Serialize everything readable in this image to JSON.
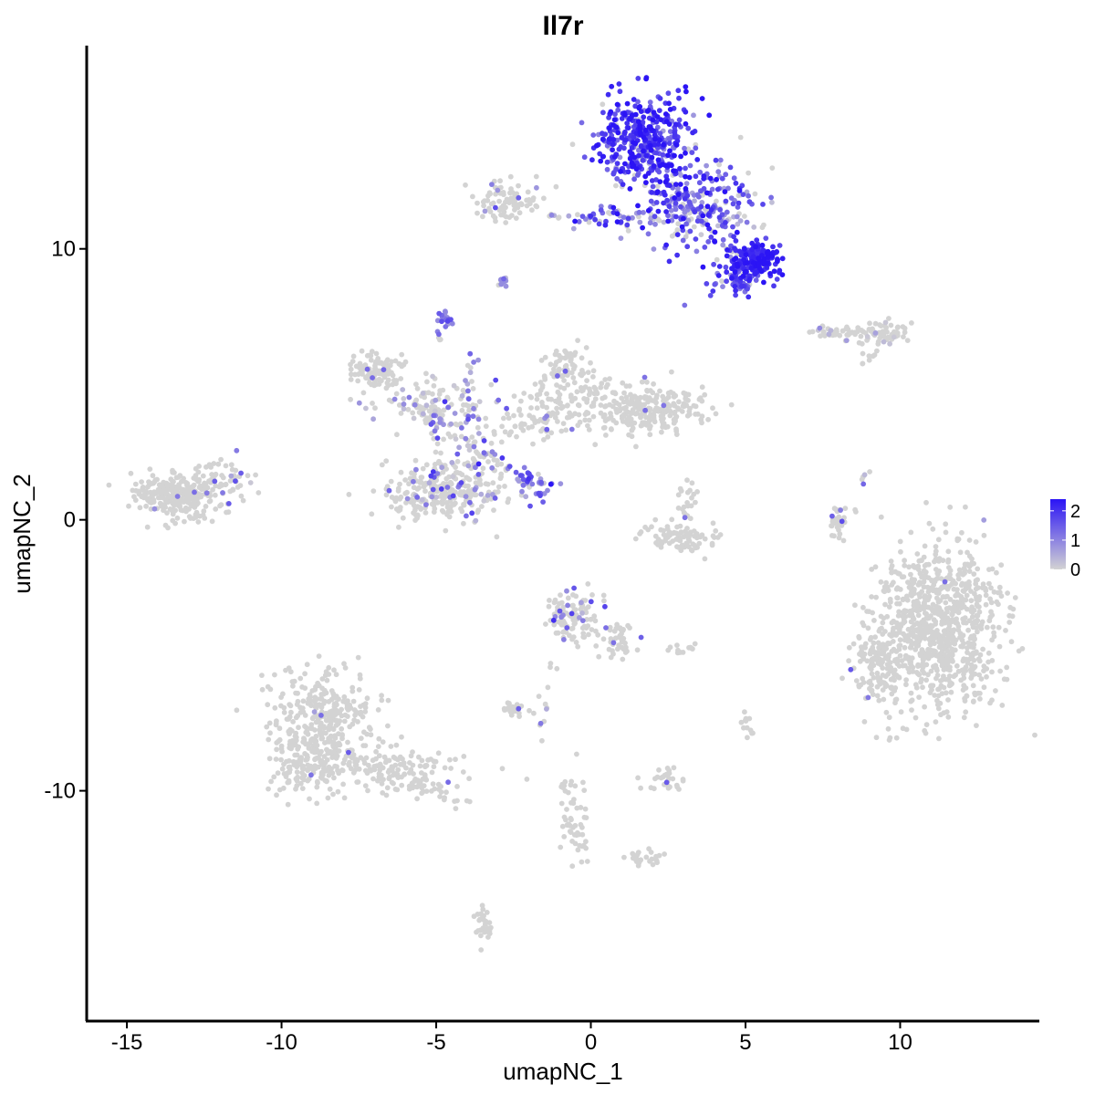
{
  "chart_data": {
    "type": "scatter",
    "title": "Il7r",
    "xlabel": "umapNC_1",
    "ylabel": "umapNC_2",
    "xlim": [
      -16.3,
      14.5
    ],
    "ylim": [
      -18.5,
      17.5
    ],
    "xticks": [
      -15,
      -10,
      -5,
      0,
      5,
      10
    ],
    "xtick_labels": [
      "-15",
      "-10",
      "-5",
      "0",
      "5",
      "10"
    ],
    "yticks": [
      -10,
      0,
      10
    ],
    "ytick_labels": [
      "-10",
      "0",
      "10"
    ],
    "grid": false,
    "color_scale": {
      "low": "#d3d3d3",
      "high": "#2b14f5",
      "min": 0,
      "max": 2.4
    },
    "legend": {
      "position": "right",
      "ticks": [
        0,
        1,
        2
      ],
      "tick_labels": [
        "0",
        "1",
        "2"
      ]
    },
    "clusters": [
      {
        "cx": 1.8,
        "cy": 14.0,
        "sx": 0.8,
        "sy": 0.9,
        "n": 420,
        "expr": 1.9,
        "expr_spread": 0.5,
        "zero_frac": 0.05
      },
      {
        "cx": 3.5,
        "cy": 11.5,
        "sx": 1.0,
        "sy": 0.7,
        "n": 260,
        "expr": 1.4,
        "expr_spread": 0.7,
        "zero_frac": 0.2
      },
      {
        "cx": 5.3,
        "cy": 9.6,
        "sx": 0.45,
        "sy": 0.35,
        "n": 160,
        "expr": 2.1,
        "expr_spread": 0.3,
        "zero_frac": 0.02
      },
      {
        "cx": 4.6,
        "cy": 8.9,
        "sx": 0.4,
        "sy": 0.35,
        "n": 70,
        "expr": 1.6,
        "expr_spread": 0.5,
        "zero_frac": 0.05
      },
      {
        "cx": 0.7,
        "cy": 11.2,
        "sx": 0.7,
        "sy": 0.2,
        "n": 40,
        "expr": 1.4,
        "expr_spread": 0.8,
        "zero_frac": 0.2
      },
      {
        "cx": -2.7,
        "cy": 11.8,
        "sx": 0.5,
        "sy": 0.35,
        "n": 90,
        "expr": 0.0,
        "expr_spread": 0.4,
        "zero_frac": 0.95
      },
      {
        "cx": -2.9,
        "cy": 8.8,
        "sx": 0.1,
        "sy": 0.1,
        "n": 10,
        "expr": 1.0,
        "expr_spread": 0.3,
        "zero_frac": 0.1
      },
      {
        "cx": -4.7,
        "cy": 7.4,
        "sx": 0.12,
        "sy": 0.15,
        "n": 20,
        "expr": 1.0,
        "expr_spread": 0.3,
        "zero_frac": 0.0
      },
      {
        "cx": -6.9,
        "cy": 5.5,
        "sx": 0.5,
        "sy": 0.35,
        "n": 110,
        "expr": 0.0,
        "expr_spread": 0.3,
        "zero_frac": 0.96
      },
      {
        "cx": -5.0,
        "cy": 4.2,
        "sx": 0.9,
        "sy": 0.5,
        "n": 70,
        "expr": 0.6,
        "expr_spread": 0.6,
        "zero_frac": 0.7
      },
      {
        "cx": -4.8,
        "cy": 1.0,
        "sx": 0.9,
        "sy": 0.55,
        "n": 260,
        "expr": 0.0,
        "expr_spread": 0.4,
        "zero_frac": 0.92
      },
      {
        "cx": -3.8,
        "cy": 2.0,
        "sx": 0.3,
        "sy": 1.0,
        "n": 60,
        "expr": 0.9,
        "expr_spread": 0.6,
        "zero_frac": 0.5
      },
      {
        "cx": -1.5,
        "cy": 4.0,
        "sx": 0.9,
        "sy": 0.5,
        "n": 80,
        "expr": 0.0,
        "expr_spread": 0.3,
        "zero_frac": 0.9
      },
      {
        "cx": -0.8,
        "cy": 5.6,
        "sx": 0.35,
        "sy": 0.45,
        "n": 70,
        "expr": 0.0,
        "expr_spread": 0.3,
        "zero_frac": 0.98
      },
      {
        "cx": 1.8,
        "cy": 4.1,
        "sx": 1.0,
        "sy": 0.45,
        "n": 260,
        "expr": 0.0,
        "expr_spread": 0.3,
        "zero_frac": 0.98
      },
      {
        "cx": -2.0,
        "cy": 1.4,
        "sx": 0.35,
        "sy": 0.25,
        "n": 25,
        "expr": 1.2,
        "expr_spread": 0.5,
        "zero_frac": 0.1
      },
      {
        "cx": -13.4,
        "cy": 0.9,
        "sx": 0.75,
        "sy": 0.4,
        "n": 260,
        "expr": 0.0,
        "expr_spread": 0.3,
        "zero_frac": 0.97
      },
      {
        "cx": -12.0,
        "cy": 1.5,
        "sx": 0.5,
        "sy": 0.4,
        "n": 50,
        "expr": 0.0,
        "expr_spread": 0.3,
        "zero_frac": 0.95
      },
      {
        "cx": 2.9,
        "cy": -0.7,
        "sx": 0.6,
        "sy": 0.3,
        "n": 90,
        "expr": 0.0,
        "expr_spread": 0.3,
        "zero_frac": 0.97
      },
      {
        "cx": 3.2,
        "cy": 0.7,
        "sx": 0.2,
        "sy": 0.3,
        "n": 20,
        "expr": 0.0,
        "expr_spread": 0.3,
        "zero_frac": 0.95
      },
      {
        "cx": 7.9,
        "cy": 0.0,
        "sx": 0.12,
        "sy": 0.45,
        "n": 25,
        "expr": 0.0,
        "expr_spread": 0.3,
        "zero_frac": 0.92
      },
      {
        "cx": 7.8,
        "cy": 6.9,
        "sx": 0.55,
        "sy": 0.15,
        "n": 40,
        "expr": 0.5,
        "expr_spread": 0.5,
        "zero_frac": 0.8
      },
      {
        "cx": 9.4,
        "cy": 6.9,
        "sx": 0.4,
        "sy": 0.2,
        "n": 60,
        "expr": 0.3,
        "expr_spread": 0.4,
        "zero_frac": 0.85
      },
      {
        "cx": 11.2,
        "cy": -4.0,
        "sx": 1.0,
        "sy": 1.5,
        "n": 900,
        "expr": 0.0,
        "expr_spread": 0.3,
        "zero_frac": 0.995
      },
      {
        "cx": 9.2,
        "cy": -5.2,
        "sx": 0.5,
        "sy": 0.8,
        "n": 120,
        "expr": 0.0,
        "expr_spread": 0.3,
        "zero_frac": 0.99
      },
      {
        "cx": -8.6,
        "cy": -7.5,
        "sx": 0.8,
        "sy": 1.0,
        "n": 340,
        "expr": 0.0,
        "expr_spread": 0.3,
        "zero_frac": 0.995
      },
      {
        "cx": -9.3,
        "cy": -9.2,
        "sx": 0.6,
        "sy": 0.5,
        "n": 90,
        "expr": 0.0,
        "expr_spread": 0.3,
        "zero_frac": 0.99
      },
      {
        "cx": -6.3,
        "cy": -9.3,
        "sx": 1.2,
        "sy": 0.45,
        "n": 130,
        "expr": 0.0,
        "expr_spread": 0.3,
        "zero_frac": 0.99
      },
      {
        "cx": -0.6,
        "cy": -3.6,
        "sx": 0.45,
        "sy": 0.5,
        "n": 110,
        "expr": 0.0,
        "expr_spread": 0.4,
        "zero_frac": 0.9
      },
      {
        "cx": 0.8,
        "cy": -4.4,
        "sx": 0.4,
        "sy": 0.35,
        "n": 40,
        "expr": 0.0,
        "expr_spread": 0.4,
        "zero_frac": 0.93
      },
      {
        "cx": -2.5,
        "cy": -7.0,
        "sx": 0.25,
        "sy": 0.15,
        "n": 25,
        "expr": 0.0,
        "expr_spread": 0.3,
        "zero_frac": 0.92
      },
      {
        "cx": 2.4,
        "cy": -9.6,
        "sx": 0.3,
        "sy": 0.25,
        "n": 30,
        "expr": 0.0,
        "expr_spread": 0.3,
        "zero_frac": 0.92
      },
      {
        "cx": -0.5,
        "cy": -11.0,
        "sx": 0.25,
        "sy": 0.8,
        "n": 35,
        "expr": 0.0,
        "expr_spread": 0.3,
        "zero_frac": 1.0
      },
      {
        "cx": 1.8,
        "cy": -12.5,
        "sx": 0.3,
        "sy": 0.15,
        "n": 25,
        "expr": 0.0,
        "expr_spread": 0.3,
        "zero_frac": 1.0
      },
      {
        "cx": -3.5,
        "cy": -14.9,
        "sx": 0.15,
        "sy": 0.4,
        "n": 30,
        "expr": 0.0,
        "expr_spread": 0.3,
        "zero_frac": 1.0
      },
      {
        "cx": 5.0,
        "cy": -7.6,
        "sx": 0.1,
        "sy": 0.25,
        "n": 12,
        "expr": 0.0,
        "expr_spread": 0.3,
        "zero_frac": 1.0
      },
      {
        "cx": 2.9,
        "cy": -4.9,
        "sx": 0.2,
        "sy": 0.05,
        "n": 6,
        "expr": 0.0,
        "expr_spread": 0.3,
        "zero_frac": 1.0
      }
    ],
    "segments": [
      {
        "from": [
          -4.9,
          7.3
        ],
        "to": [
          -5.0,
          1.2
        ],
        "n": 40,
        "expr": 0.9,
        "zero_frac": 0.55
      },
      {
        "from": [
          -3.5,
          2.6
        ],
        "to": [
          -1.5,
          0.9
        ],
        "n": 30,
        "expr": 1.3,
        "zero_frac": 0.25
      },
      {
        "from": [
          -6.0,
          4.5
        ],
        "to": [
          -3.0,
          2.0
        ],
        "n": 30,
        "expr": 0.8,
        "zero_frac": 0.6
      },
      {
        "from": [
          -3.8,
          6.0
        ],
        "to": [
          -4.6,
          0.6
        ],
        "n": 25,
        "expr": 0.9,
        "zero_frac": 0.5
      },
      {
        "from": [
          -3.0,
          3.0
        ],
        "to": [
          0.5,
          5.0
        ],
        "n": 45,
        "expr": 0.0,
        "zero_frac": 0.95
      },
      {
        "from": [
          -1.5,
          11.2
        ],
        "to": [
          0.2,
          11.2
        ],
        "n": 12,
        "expr": 1.1,
        "zero_frac": 0.5
      },
      {
        "from": [
          -11.6,
          1.5
        ],
        "to": [
          -10.8,
          1.4
        ],
        "n": 6,
        "expr": 1.3,
        "zero_frac": 0.3
      },
      {
        "from": [
          -10.0,
          -8.0
        ],
        "to": [
          -4.0,
          -10.5
        ],
        "n": 60,
        "expr": 0.0,
        "zero_frac": 1.0
      },
      {
        "from": [
          -1.2,
          -5.2
        ],
        "to": [
          -1.6,
          -8.0
        ],
        "n": 12,
        "expr": 0.3,
        "zero_frac": 0.7
      },
      {
        "from": [
          -0.9,
          -9.6
        ],
        "to": [
          -0.2,
          -12.3
        ],
        "n": 20,
        "expr": 0.0,
        "zero_frac": 1.0
      },
      {
        "from": [
          2.5,
          -4.8
        ],
        "to": [
          3.4,
          -4.7
        ],
        "n": 8,
        "expr": 0.0,
        "zero_frac": 1.0
      },
      {
        "from": [
          8.9,
          1.6
        ],
        "to": [
          7.9,
          -0.7
        ],
        "n": 12,
        "expr": 0.0,
        "zero_frac": 0.9
      },
      {
        "from": [
          9.3,
          6.3
        ],
        "to": [
          8.6,
          5.8
        ],
        "n": 8,
        "expr": 0.0,
        "zero_frac": 1.0
      },
      {
        "from": [
          -7.2,
          4.3
        ],
        "to": [
          -4.8,
          4.0
        ],
        "n": 20,
        "expr": 0.4,
        "zero_frac": 0.8
      }
    ]
  }
}
